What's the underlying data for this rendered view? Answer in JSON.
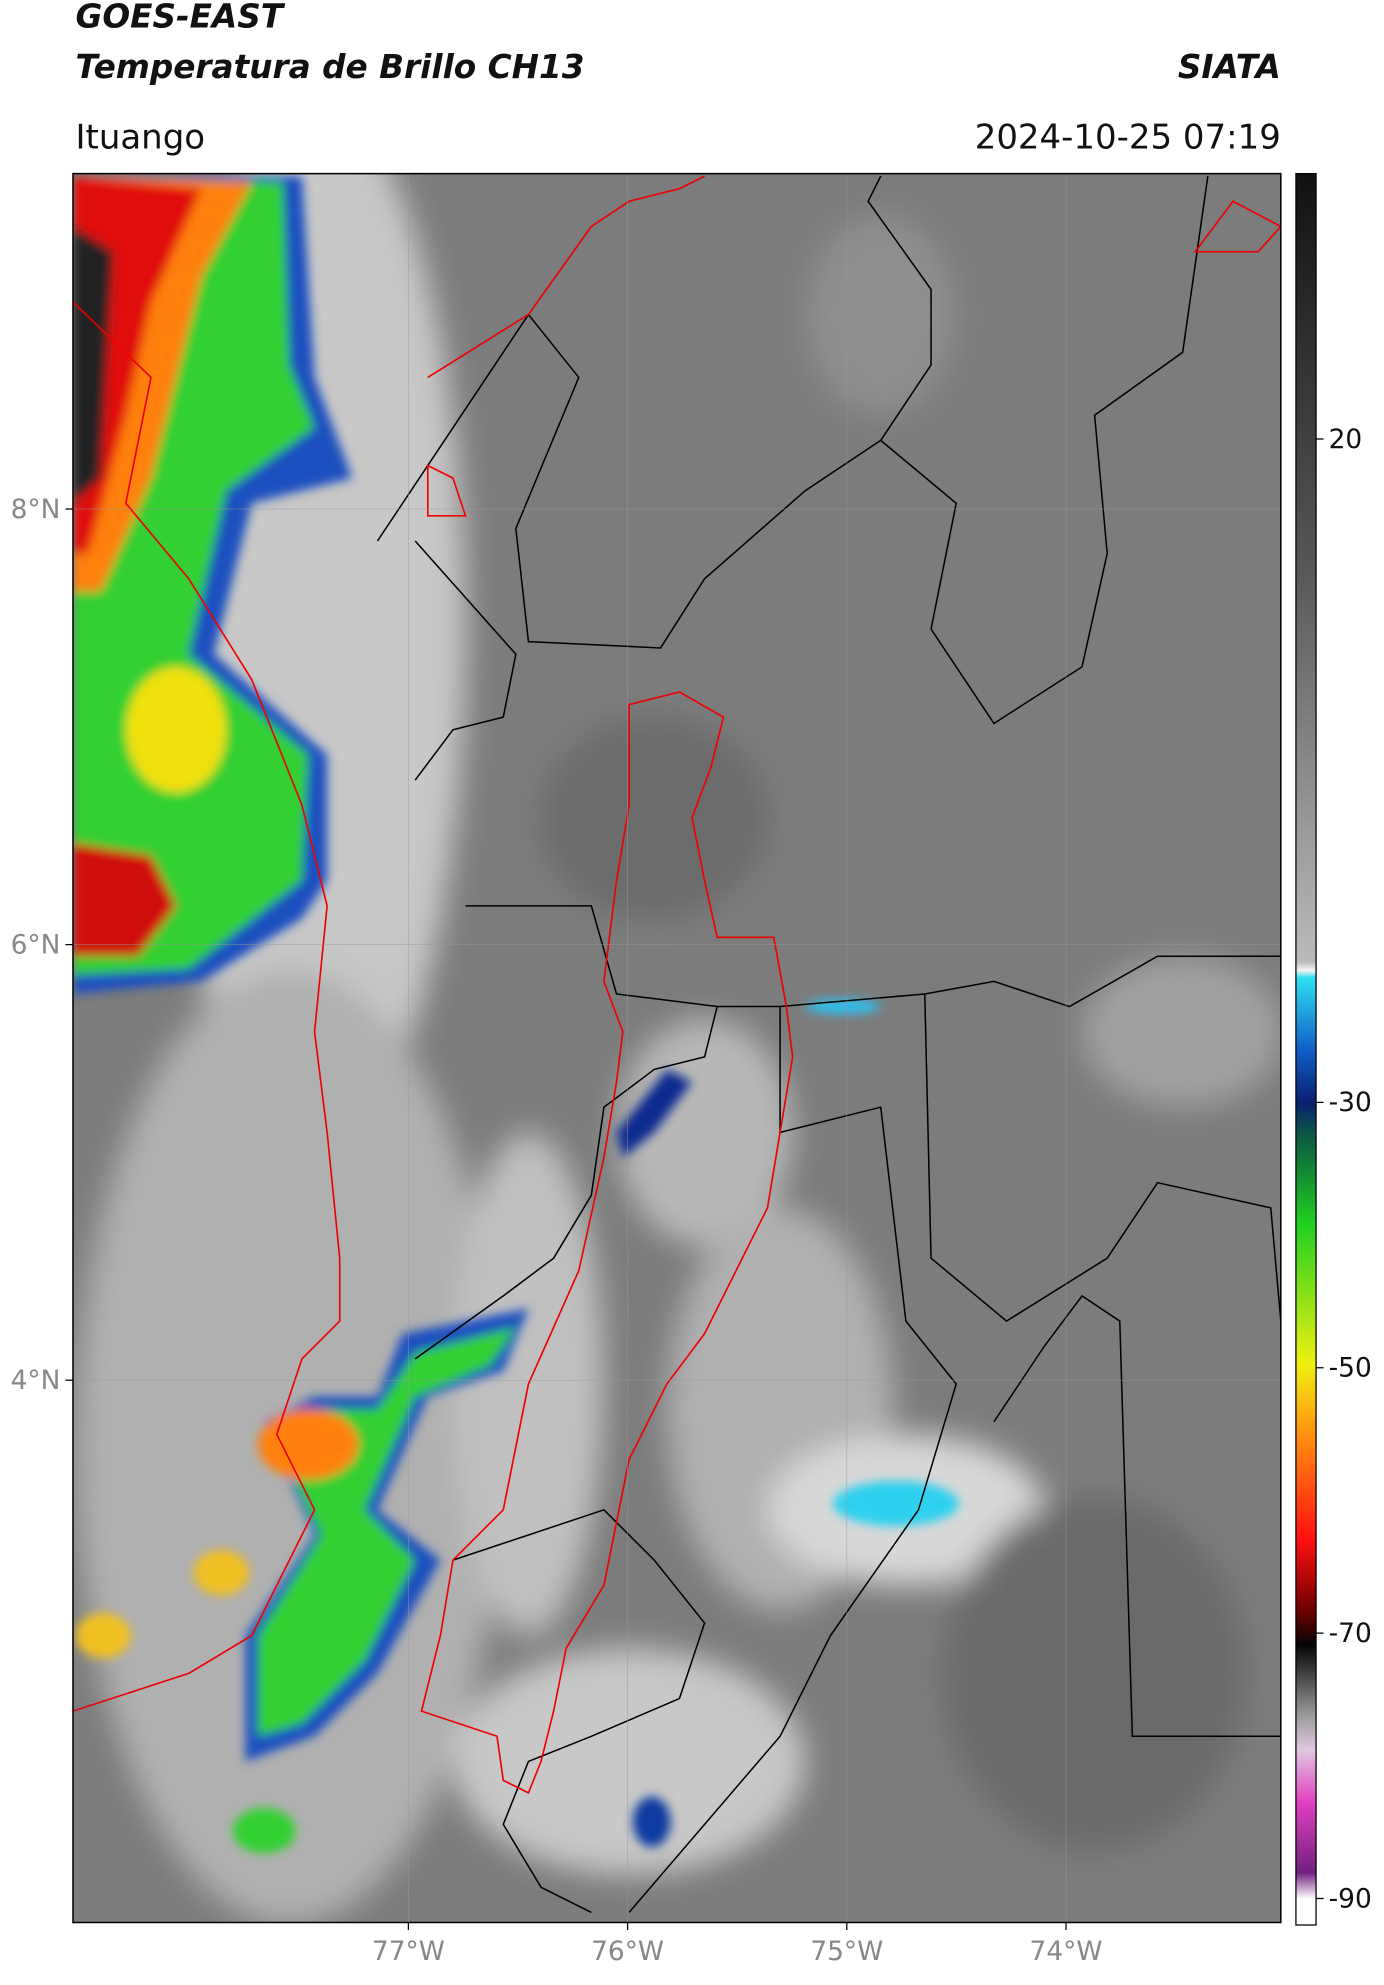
{
  "header": {
    "satellite": "GOES-EAST",
    "product": "Temperatura de Brillo CH13",
    "org": "SIATA",
    "region": "Ituango",
    "datetime": "2024-10-25 07:19"
  },
  "map": {
    "xlim": [
      -78.53,
      -73.02
    ],
    "ylim": [
      1.51,
      9.54
    ],
    "xticks": [
      {
        "value": -77,
        "label": "77°W"
      },
      {
        "value": -76,
        "label": "76°W"
      },
      {
        "value": -75,
        "label": "75°W"
      },
      {
        "value": -74,
        "label": "74°W"
      }
    ],
    "yticks": [
      {
        "value": 8,
        "label": "8°N"
      },
      {
        "value": 6,
        "label": "6°N"
      },
      {
        "value": 4,
        "label": "4°N"
      }
    ],
    "grid": true
  },
  "colorbar": {
    "lim": [
      -92,
      40
    ],
    "ticks": [
      20,
      -30,
      -50,
      -70,
      -90
    ]
  }
}
